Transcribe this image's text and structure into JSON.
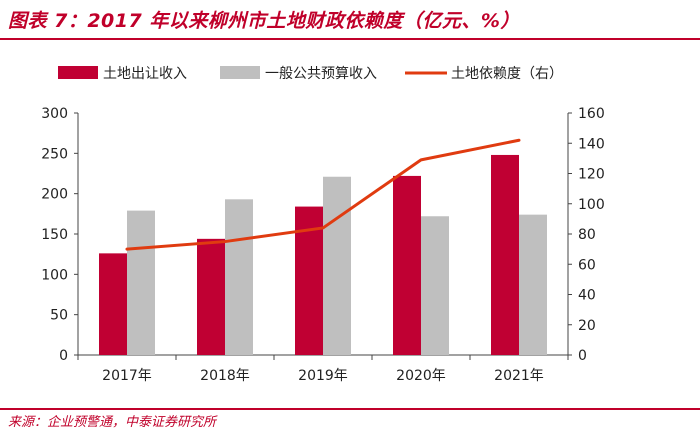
{
  "header": {
    "title": "图表 7：2017 年以来柳州市土地财政依赖度（亿元、%）"
  },
  "footer": {
    "source": "来源：企业预警通，中泰证券研究所"
  },
  "colors": {
    "accent": "#c0002a",
    "land_bar": "#c00033",
    "budget_bar": "#bfbfbf",
    "dependency_line": "#e03b10"
  },
  "chart_data": {
    "type": "bar",
    "categories": [
      "2017年",
      "2018年",
      "2019年",
      "2020年",
      "2021年"
    ],
    "series": [
      {
        "name": "土地出让收入",
        "type": "bar",
        "axis": "left",
        "values": [
          126,
          144,
          184,
          222,
          248
        ]
      },
      {
        "name": "一般公共预算收入",
        "type": "bar",
        "axis": "left",
        "values": [
          179,
          193,
          221,
          172,
          174
        ]
      },
      {
        "name": "土地依赖度（右）",
        "type": "line",
        "axis": "right",
        "values": [
          70,
          75,
          84,
          129,
          142
        ]
      }
    ],
    "y_left": {
      "min": 0,
      "max": 300,
      "ticks": [
        0,
        50,
        100,
        150,
        200,
        250,
        300
      ]
    },
    "y_right": {
      "min": 0,
      "max": 160,
      "ticks": [
        0,
        20,
        40,
        60,
        80,
        100,
        120,
        140,
        160
      ]
    },
    "legend_position": "top",
    "grid": false
  }
}
